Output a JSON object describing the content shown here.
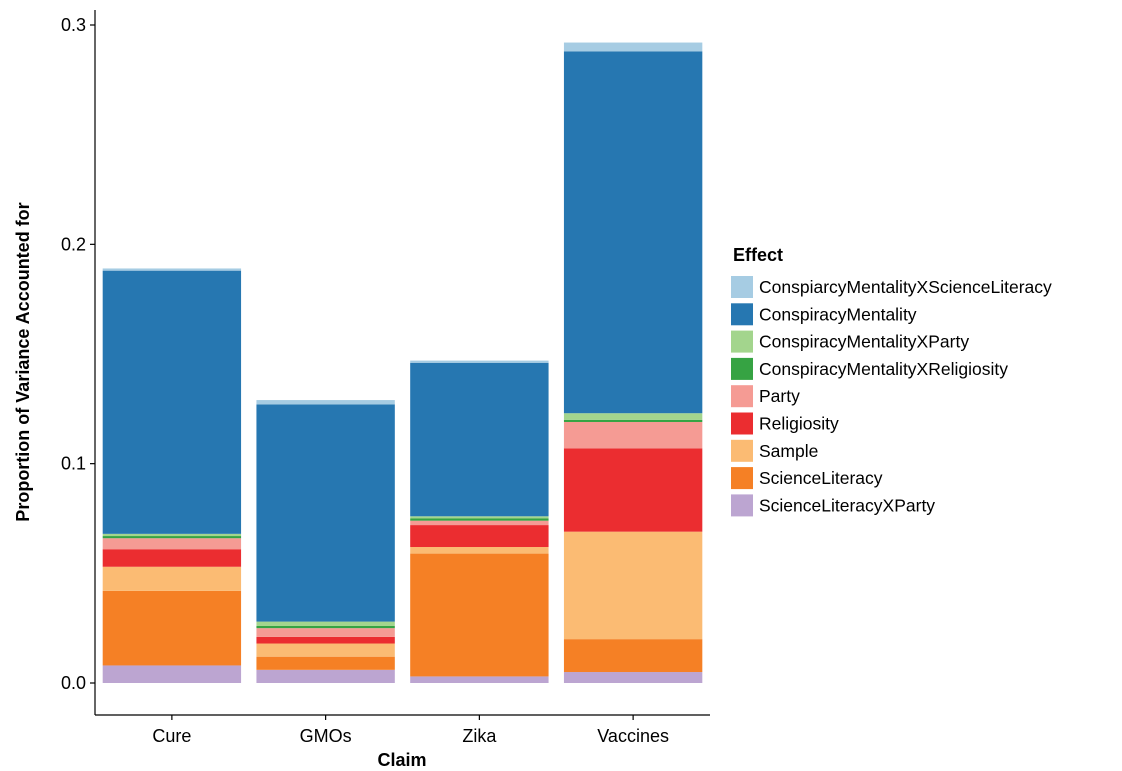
{
  "chart_data": {
    "type": "bar",
    "stacked": true,
    "xlabel": "Claim",
    "ylabel": "Proportion of Variance Accounted for",
    "categories": [
      "Cure",
      "GMOs",
      "Zika",
      "Vaccines"
    ],
    "ylim": [
      0,
      0.3
    ],
    "yticks": [
      "0.0",
      "0.1",
      "0.2",
      "0.3"
    ],
    "grid": false,
    "legend": {
      "title": "Effect",
      "position": "right"
    },
    "series": [
      {
        "name": "ScienceLiteracyXParty",
        "color": "#BCA5D1",
        "values": [
          0.008,
          0.006,
          0.003,
          0.005
        ]
      },
      {
        "name": "ScienceLiteracy",
        "color": "#F58025",
        "values": [
          0.034,
          0.006,
          0.056,
          0.015
        ]
      },
      {
        "name": "Sample",
        "color": "#FBBB73",
        "values": [
          0.011,
          0.006,
          0.003,
          0.049
        ]
      },
      {
        "name": "Religiosity",
        "color": "#EB2D30",
        "values": [
          0.008,
          0.003,
          0.01,
          0.038
        ]
      },
      {
        "name": "Party",
        "color": "#F59B94",
        "values": [
          0.005,
          0.004,
          0.002,
          0.012
        ]
      },
      {
        "name": "ConspiracyMentalityXReligiosity",
        "color": "#36A343",
        "values": [
          0.001,
          0.001,
          0.001,
          0.001
        ]
      },
      {
        "name": "ConspiracyMentalityXParty",
        "color": "#A3D58D",
        "values": [
          0.001,
          0.002,
          0.001,
          0.003
        ]
      },
      {
        "name": "ConspiracyMentality",
        "color": "#2677B1",
        "values": [
          0.12,
          0.099,
          0.07,
          0.165
        ]
      },
      {
        "name": "ConspiarcyMentalityXScienceLiteracy",
        "color": "#A6CCE3",
        "values": [
          0.001,
          0.002,
          0.001,
          0.004
        ]
      }
    ],
    "legend_order": [
      "ConspiarcyMentalityXScienceLiteracy",
      "ConspiracyMentality",
      "ConspiracyMentalityXParty",
      "ConspiracyMentalityXReligiosity",
      "Party",
      "Religiosity",
      "Sample",
      "ScienceLiteracy",
      "ScienceLiteracyXParty"
    ]
  }
}
